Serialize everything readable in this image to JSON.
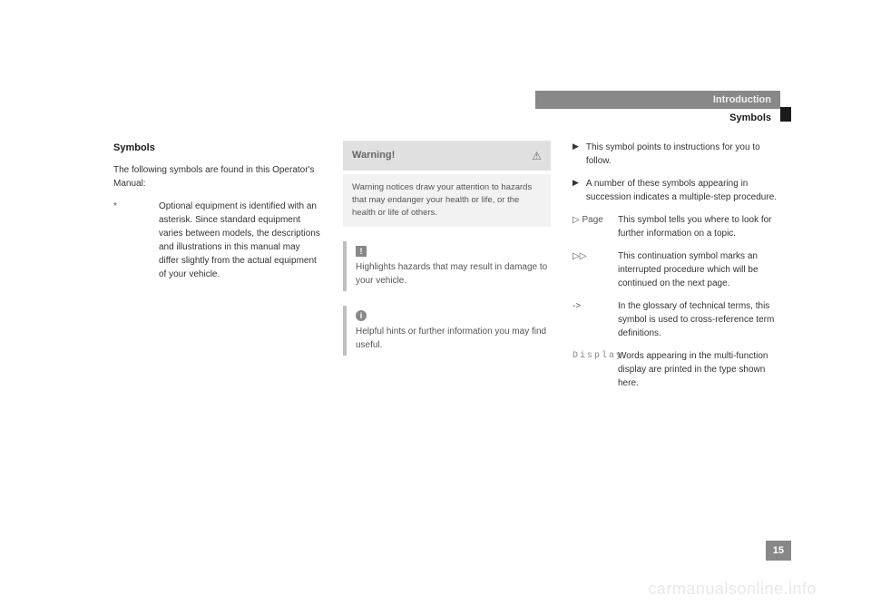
{
  "header": {
    "section": "Introduction",
    "subtitle": "Symbols"
  },
  "col1": {
    "heading": "Symbols",
    "intro": "The following symbols are found in this Operator's Manual:",
    "asterisk": {
      "key": "*",
      "desc": "Optional equipment is identified with an asterisk. Since standard equipment varies between models, the descriptions and illustrations in this manual may differ slightly from the actual equipment of your vehicle."
    }
  },
  "col2": {
    "warning": {
      "title": "Warning!",
      "text": "Warning notices draw your attention to hazards that may endanger your health or life, or the health or life of others."
    },
    "hazard": {
      "icon": "!",
      "text": "Highlights hazards that may result in damage to your vehicle."
    },
    "info": {
      "icon": "i",
      "text": "Helpful hints or further information you may find useful."
    }
  },
  "col3": {
    "bullet1": "This symbol points to instructions for you to follow.",
    "bullet2": "A number of these symbols appearing in succession indicates a multiple-step procedure.",
    "page": {
      "key": "▷ Page",
      "desc": "This symbol tells you where to look for further information on a topic."
    },
    "cont": {
      "key": "▷▷",
      "desc": "This continuation symbol marks an interrupted procedure which will be continued on the next page."
    },
    "arrow": {
      "key": "->",
      "desc": "In the glossary of technical terms, this symbol is used to cross-reference term definitions."
    },
    "display": {
      "key": "Display",
      "desc": "Words appearing in the multi-function display are printed in the type shown here."
    }
  },
  "pageNumber": "15",
  "watermark": "carmanualsonline.info"
}
